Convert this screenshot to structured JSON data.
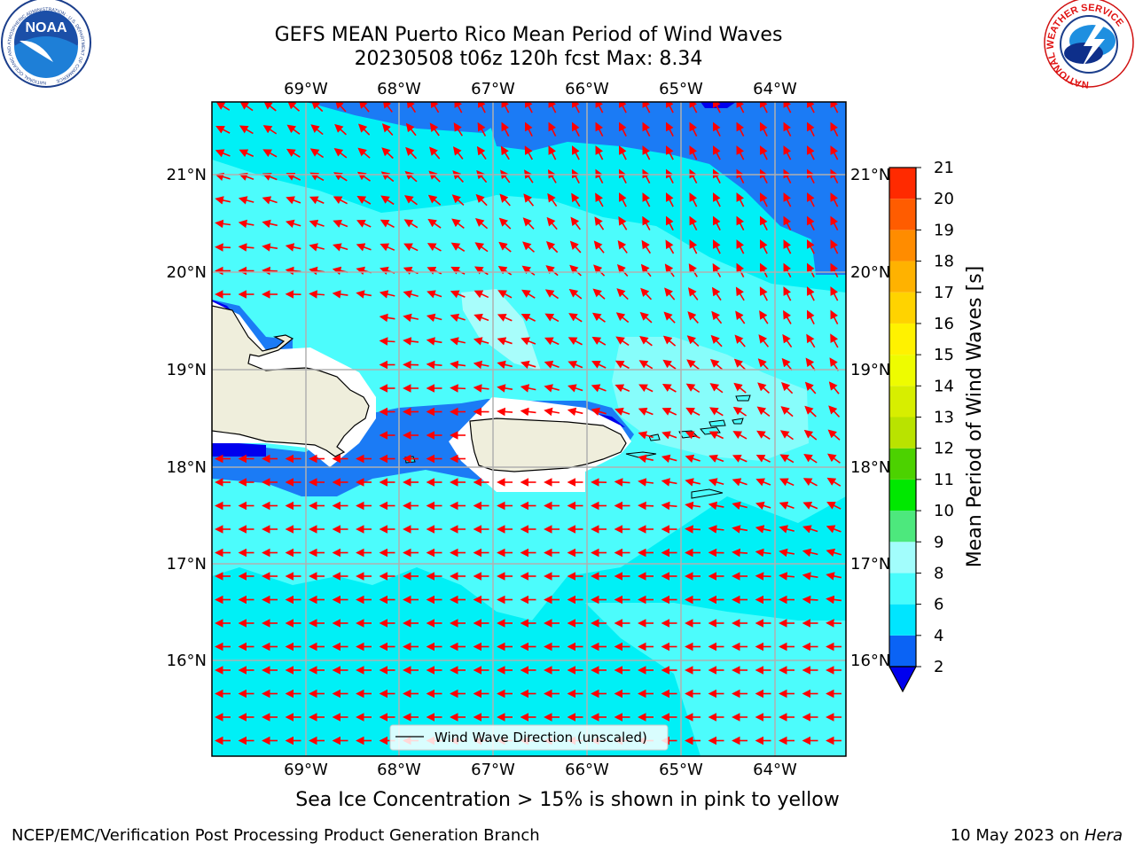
{
  "title_line1": "GEFS MEAN Puerto Rico Mean Period of Wind Waves",
  "title_line2": "20230508 t06z 120h fcst   Max: 8.34",
  "subnote": "Sea Ice Concentration > 15% is shown in pink to yellow",
  "footer_left": "NCEP/EMC/Verification Post Processing Product Generation Branch",
  "footer_date": "10 May 2023 on ",
  "footer_host": "Hera",
  "legend_label": "Wind Wave Direction (unscaled)",
  "colorbar": {
    "title": "Mean Period of Wind Waves [s]",
    "ticks": [
      "2",
      "4",
      "6",
      "8",
      "9",
      "10",
      "11",
      "12",
      "13",
      "14",
      "15",
      "16",
      "17",
      "18",
      "19",
      "20",
      "21"
    ],
    "colors": [
      "#0a63f5",
      "#00e5ff",
      "#48fcfc",
      "#a2fdfc",
      "#4de87d",
      "#00e800",
      "#4cd200",
      "#b9e300",
      "#d7ee00",
      "#eefc00",
      "#fff200",
      "#ffd300",
      "#ffb200",
      "#ff8c00",
      "#ff5c00",
      "#ff2a00",
      "#ff0000"
    ],
    "under_color": "#0000ee"
  },
  "lon_labels": [
    "69°W",
    "68°W",
    "67°W",
    "66°W",
    "65°W",
    "64°W"
  ],
  "lat_labels": [
    "21°N",
    "20°N",
    "19°N",
    "18°N",
    "17°N",
    "16°N"
  ],
  "map_colors": {
    "ocean_base": "#00f0f6",
    "period_6_8": "#4cfcfc",
    "period_8_9": "#a8fdfb",
    "period_2_4": "#1b7bf5",
    "period_below_2": "#0000ee",
    "land": "#efeedc",
    "arrow": "#ff0000"
  },
  "logos": {
    "noaa_text": "NOAA",
    "noaa_ring": "NATIONAL OCEANIC AND ATMOSPHERIC ADMINISTRATION · U.S. DEPARTMENT OF COMMERCE",
    "nws_ring": "NATIONAL WEATHER SERVICE"
  }
}
